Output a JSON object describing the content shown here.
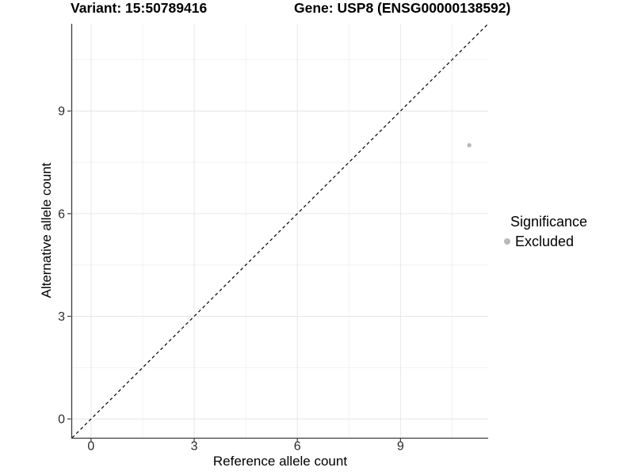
{
  "header": {
    "variant_title": "Variant: 15:50789416",
    "gene_title": "Gene: USP8 (ENSG00000138592)"
  },
  "legend": {
    "title": "Significance",
    "items": [
      {
        "label": "Excluded",
        "color": "#b9b9b9"
      }
    ]
  },
  "chart_data": {
    "type": "scatter",
    "title": "Variant: 15:50789416   Gene: USP8 (ENSG00000138592)",
    "xlabel": "Reference allele count",
    "ylabel": "Alternative allele count",
    "x_ticks": [
      0,
      3,
      6,
      9
    ],
    "y_ticks": [
      0,
      3,
      6,
      9
    ],
    "x_minor_ticks": [
      1.5,
      4.5,
      7.5,
      10.5
    ],
    "y_minor_ticks": [
      1.5,
      4.5,
      7.5,
      10.5
    ],
    "xlim": [
      -0.55,
      11.55
    ],
    "ylim": [
      -0.55,
      11.55
    ],
    "grid": true,
    "legend_position": "right",
    "series": [
      {
        "name": "Excluded",
        "color": "#b9b9b9",
        "points": [
          {
            "x": 11,
            "y": 8
          }
        ]
      }
    ],
    "reference_line": {
      "type": "identity y=x",
      "style": "dashed",
      "color": "#000000"
    },
    "colors": {
      "background": "#ffffff",
      "grid_major": "#e6e6e6",
      "grid_minor": "#f2f2f2",
      "axis_line": "#3c3c3c",
      "tick_text": "#2b2b2b",
      "point": "#b9b9b9"
    }
  }
}
